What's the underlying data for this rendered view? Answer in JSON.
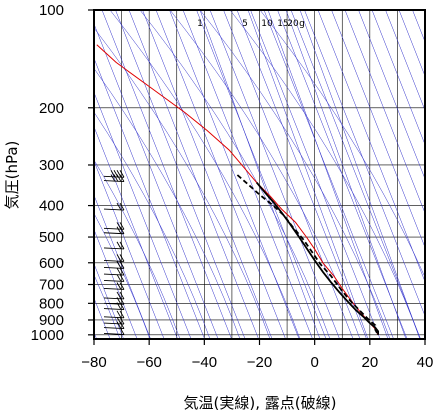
{
  "chart_data": {
    "type": "line",
    "title": "",
    "xlabel": "気温(実線), 露点(破線)",
    "ylabel": "気圧(hPa)",
    "xlim": [
      -80,
      40
    ],
    "ylim": [
      1030,
      100
    ],
    "y_scale": "log",
    "x_ticks": [
      -80,
      -60,
      -40,
      -20,
      0,
      20,
      40
    ],
    "x_tick_labels": [
      "−80",
      "−60",
      "−40",
      "−20",
      "0",
      "20",
      "40"
    ],
    "y_ticks": [
      100,
      200,
      300,
      400,
      500,
      600,
      700,
      800,
      900,
      1000
    ],
    "y_tick_labels": [
      "100",
      "200",
      "300",
      "400",
      "500",
      "600",
      "700",
      "800",
      "900",
      "1000"
    ],
    "grid": true,
    "mixing_ratio_labels": [
      "1",
      "5",
      "10",
      "15",
      "20",
      "g"
    ],
    "series": [
      {
        "color": "#e00000",
        "style": "solid",
        "points": [
          [
            -79,
            128
          ],
          [
            -72,
            145
          ],
          [
            -60,
            172
          ],
          [
            -47,
            207
          ],
          [
            -39,
            235
          ],
          [
            -31,
            270
          ],
          [
            -25,
            310
          ],
          [
            -21,
            340
          ],
          [
            -16,
            375
          ],
          [
            -12,
            410
          ],
          [
            -7,
            450
          ],
          [
            -3,
            500
          ],
          [
            0,
            545
          ],
          [
            3,
            600
          ],
          [
            7,
            660
          ],
          [
            10,
            720
          ],
          [
            13,
            780
          ],
          [
            16,
            840
          ],
          [
            19,
            900
          ],
          [
            22,
            960
          ],
          [
            23,
            1000
          ]
        ]
      },
      {
        "color": "#000000",
        "style": "solid",
        "points": [
          [
            -21,
            340
          ],
          [
            -18,
            365
          ],
          [
            -15,
            390
          ],
          [
            -12,
            420
          ],
          [
            -9,
            455
          ],
          [
            -6,
            495
          ],
          [
            -3,
            540
          ],
          [
            0,
            590
          ],
          [
            3,
            640
          ],
          [
            6,
            690
          ],
          [
            9,
            740
          ],
          [
            12,
            790
          ],
          [
            15,
            840
          ],
          [
            18,
            885
          ],
          [
            20,
            920
          ],
          [
            22,
            950
          ],
          [
            23,
            975
          ],
          [
            23,
            1000
          ]
        ]
      },
      {
        "color": "#000000",
        "style": "dashed",
        "points": [
          [
            -28,
            322
          ],
          [
            -24,
            345
          ],
          [
            -20,
            370
          ],
          [
            -15,
            400
          ],
          [
            -11,
            430
          ],
          [
            -8,
            465
          ],
          [
            -4,
            510
          ],
          [
            -1,
            555
          ],
          [
            2,
            605
          ],
          [
            6,
            660
          ],
          [
            9,
            715
          ],
          [
            12,
            770
          ],
          [
            15,
            820
          ],
          [
            18,
            870
          ],
          [
            20,
            905
          ],
          [
            22,
            935
          ],
          [
            22,
            965
          ],
          [
            23,
            1000
          ]
        ]
      }
    ],
    "wind_barbs": [
      {
        "pressure": 325,
        "speed": 40
      },
      {
        "pressure": 335,
        "speed": 40
      },
      {
        "pressure": 410,
        "speed": 20
      },
      {
        "pressure": 470,
        "speed": 20
      },
      {
        "pressure": 485,
        "speed": 15
      },
      {
        "pressure": 540,
        "speed": 15
      },
      {
        "pressure": 590,
        "speed": 15
      },
      {
        "pressure": 620,
        "speed": 15
      },
      {
        "pressure": 650,
        "speed": 15
      },
      {
        "pressure": 680,
        "speed": 15
      },
      {
        "pressure": 720,
        "speed": 15
      },
      {
        "pressure": 770,
        "speed": 15
      },
      {
        "pressure": 800,
        "speed": 15
      },
      {
        "pressure": 830,
        "speed": 15
      },
      {
        "pressure": 880,
        "speed": 15
      },
      {
        "pressure": 920,
        "speed": 15
      },
      {
        "pressure": 950,
        "speed": 15
      },
      {
        "pressure": 990,
        "speed": 10
      }
    ]
  }
}
